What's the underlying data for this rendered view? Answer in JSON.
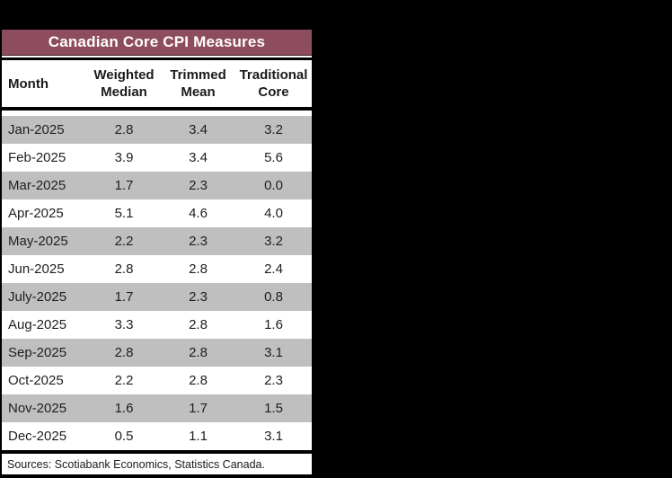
{
  "title": "Canadian Core CPI Measures",
  "table": {
    "columns": [
      {
        "key": "month",
        "label": "Month"
      },
      {
        "key": "weighted_median",
        "label": "Weighted\nMedian"
      },
      {
        "key": "trimmed_mean",
        "label": "Trimmed\nMean"
      },
      {
        "key": "traditional_core",
        "label": "Traditional\nCore"
      }
    ],
    "rows": [
      {
        "month": "Jan-2025",
        "weighted_median": "2.8",
        "trimmed_mean": "3.4",
        "traditional_core": "3.2"
      },
      {
        "month": "Feb-2025",
        "weighted_median": "3.9",
        "trimmed_mean": "3.4",
        "traditional_core": "5.6"
      },
      {
        "month": "Mar-2025",
        "weighted_median": "1.7",
        "trimmed_mean": "2.3",
        "traditional_core": "0.0"
      },
      {
        "month": "Apr-2025",
        "weighted_median": "5.1",
        "trimmed_mean": "4.6",
        "traditional_core": "4.0"
      },
      {
        "month": "May-2025",
        "weighted_median": "2.2",
        "trimmed_mean": "2.3",
        "traditional_core": "3.2"
      },
      {
        "month": "Jun-2025",
        "weighted_median": "2.8",
        "trimmed_mean": "2.8",
        "traditional_core": "2.4"
      },
      {
        "month": "July-2025",
        "weighted_median": "1.7",
        "trimmed_mean": "2.3",
        "traditional_core": "0.8"
      },
      {
        "month": "Aug-2025",
        "weighted_median": "3.3",
        "trimmed_mean": "2.8",
        "traditional_core": "1.6"
      },
      {
        "month": "Sep-2025",
        "weighted_median": "2.8",
        "trimmed_mean": "2.8",
        "traditional_core": "3.1"
      },
      {
        "month": "Oct-2025",
        "weighted_median": "2.2",
        "trimmed_mean": "2.8",
        "traditional_core": "2.3"
      },
      {
        "month": "Nov-2025",
        "weighted_median": "1.6",
        "trimmed_mean": "1.7",
        "traditional_core": "1.5"
      },
      {
        "month": "Dec-2025",
        "weighted_median": "0.5",
        "trimmed_mean": "1.1",
        "traditional_core": "3.1"
      }
    ]
  },
  "footer": {
    "sources": "Sources: Scotiabank Economics, Statistics Canada."
  },
  "colors": {
    "title_bg": "#8E4D5F",
    "title_text": "#FFFFFF",
    "row_alt": "#BFBFBF",
    "border": "#000000",
    "background": "#000000"
  },
  "chart_data": {
    "type": "table",
    "title": "Canadian Core CPI Measures",
    "categories": [
      "Jan-2025",
      "Feb-2025",
      "Mar-2025",
      "Apr-2025",
      "May-2025",
      "Jun-2025",
      "July-2025",
      "Aug-2025",
      "Sep-2025",
      "Oct-2025",
      "Nov-2025",
      "Dec-2025"
    ],
    "series": [
      {
        "name": "Weighted Median",
        "values": [
          2.8,
          3.9,
          1.7,
          5.1,
          2.2,
          2.8,
          1.7,
          3.3,
          2.8,
          2.2,
          1.6,
          0.5
        ]
      },
      {
        "name": "Trimmed Mean",
        "values": [
          3.4,
          3.4,
          2.3,
          4.6,
          2.3,
          2.8,
          2.3,
          2.8,
          2.8,
          2.8,
          1.7,
          1.1
        ]
      },
      {
        "name": "Traditional Core",
        "values": [
          3.2,
          5.6,
          0.0,
          4.0,
          3.2,
          2.4,
          0.8,
          1.6,
          3.1,
          2.3,
          1.5,
          3.1
        ]
      }
    ],
    "notes": "Sources: Scotiabank Economics, Statistics Canada."
  }
}
